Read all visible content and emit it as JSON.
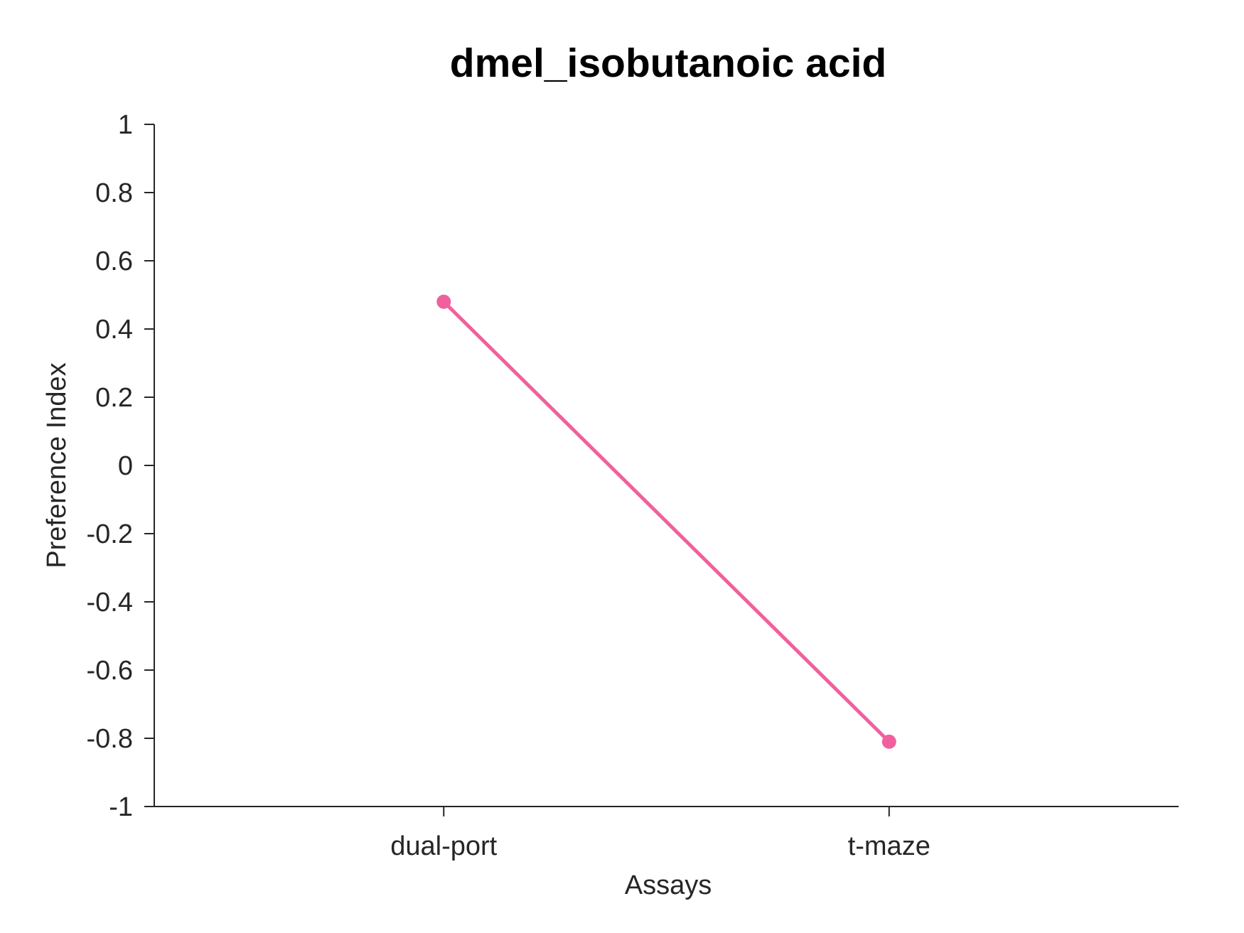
{
  "chart_data": {
    "type": "line",
    "title": "dmel_isobutanoic acid",
    "xlabel": "Assays",
    "ylabel": "Preference Index",
    "categories": [
      "dual-port",
      "t-maze"
    ],
    "series": [
      {
        "values": [
          0.48,
          -0.81
        ],
        "color": "#f0609e"
      }
    ],
    "ylim": [
      -1,
      1
    ],
    "xlim": [
      0.35,
      2.65
    ],
    "yticks": [
      "-1",
      "-0.8",
      "-0.6",
      "-0.4",
      "-0.2",
      "0",
      "0.2",
      "0.4",
      "0.6",
      "0.8",
      "1"
    ],
    "grid": false,
    "legend": "none"
  }
}
